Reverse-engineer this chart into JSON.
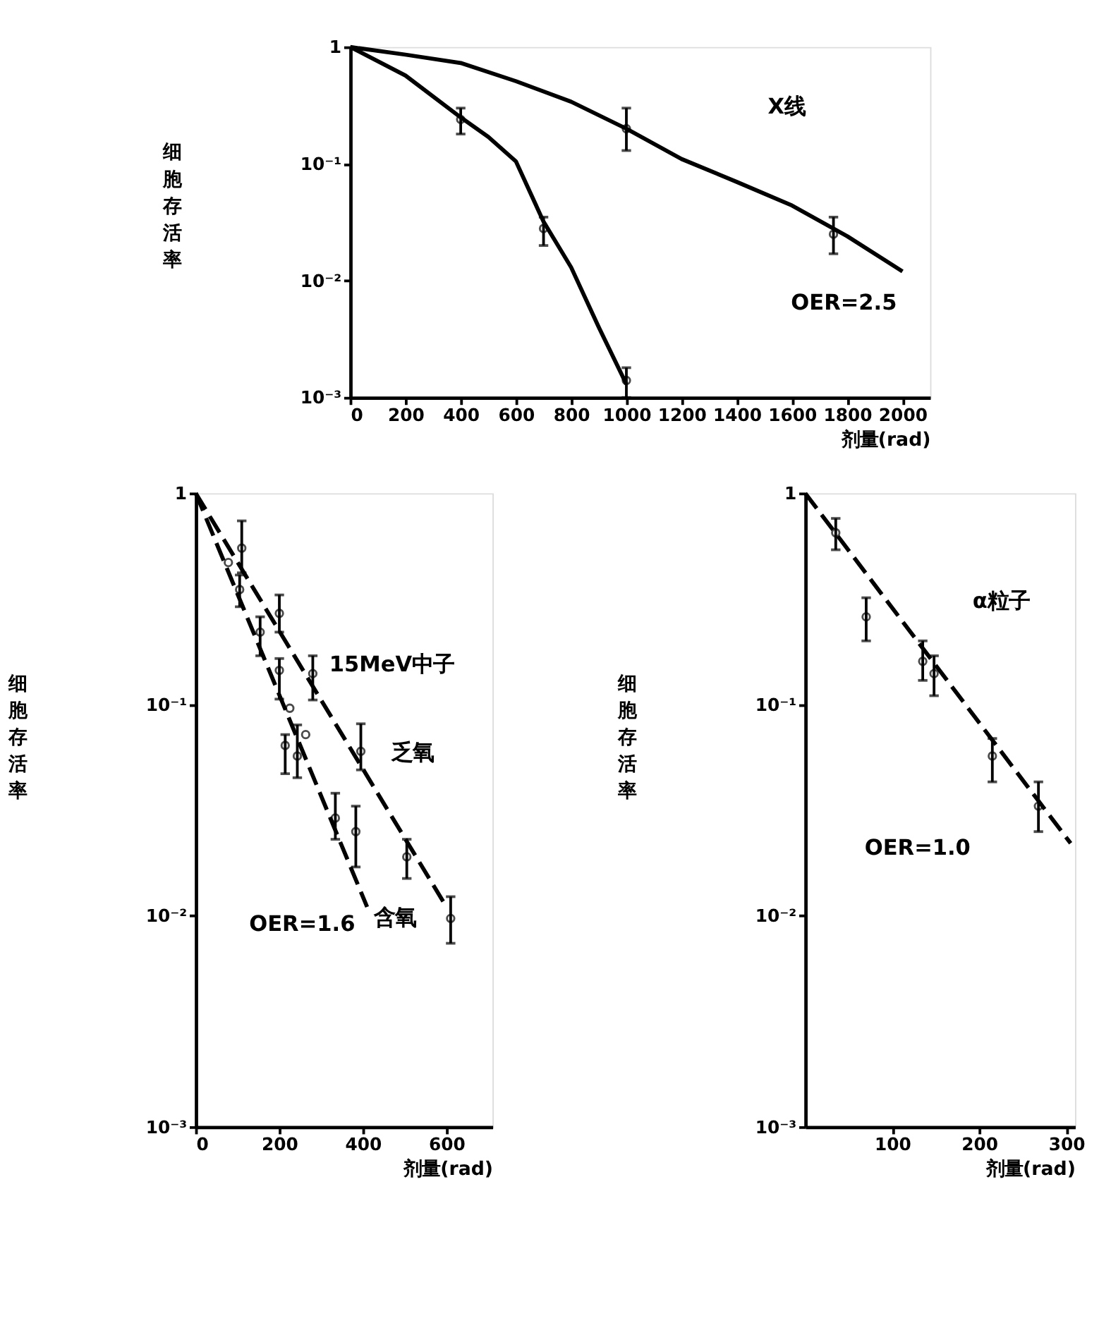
{
  "chart_data": [
    {
      "type": "line",
      "xlabel": "剂量(rad)",
      "ylabel": "细胞存活率",
      "log": "y",
      "grid": false,
      "line_style": "solid",
      "xlim": [
        0,
        2100
      ],
      "xticks": [
        0,
        200,
        400,
        600,
        800,
        1000,
        1200,
        1400,
        1600,
        1800,
        2000
      ],
      "ylim": [
        0.001,
        1
      ],
      "yticks": [
        1,
        {
          "value": 0.1,
          "label": "10⁻¹"
        },
        {
          "value": 0.01,
          "label": "10⁻²"
        },
        {
          "value": 0.001,
          "label": "10⁻³"
        }
      ],
      "annotations": [
        "X线",
        "OER=2.5"
      ],
      "series": [
        {
          "type": "line",
          "color": "#000000",
          "marker": "none",
          "x": [
            0,
            200,
            400,
            600,
            800,
            1000,
            1200,
            1400,
            1600,
            1800,
            2000
          ],
          "values": [
            1,
            0.86,
            0.73,
            0.51,
            0.34,
            0.2,
            0.11,
            0.07,
            0.044,
            0.024,
            0.012
          ]
        },
        {
          "type": "line",
          "color": "#000000",
          "marker": "none",
          "x": [
            0,
            200,
            400,
            500,
            600,
            700,
            800,
            900,
            1000
          ],
          "values": [
            1,
            0.57,
            0.25,
            0.17,
            0.105,
            0.032,
            0.013,
            0.004,
            0.0013
          ]
        },
        {
          "type": "scatter",
          "color": "#000000",
          "marker": "circle",
          "x": [
            1000,
            1750
          ],
          "values": [
            0.2,
            0.025
          ],
          "errors": [
            [
              0.13,
              0.3
            ],
            [
              0.017,
              0.035
            ]
          ]
        },
        {
          "type": "scatter",
          "color": "#000000",
          "marker": "circle",
          "x": [
            400,
            700,
            1000
          ],
          "values": [
            0.24,
            0.028,
            0.0014
          ],
          "errors": [
            [
              0.18,
              0.3
            ],
            [
              0.02,
              0.035
            ],
            [
              0.001,
              0.0018
            ]
          ]
        }
      ]
    },
    {
      "type": "line",
      "xlabel": "剂量(rad)",
      "ylabel": "细胞存活率",
      "log": "y",
      "grid": false,
      "line_style": "dashed",
      "xlim": [
        0,
        710
      ],
      "xticks": [
        0,
        200,
        400,
        600
      ],
      "ylim": [
        0.001,
        1
      ],
      "yticks": [
        1,
        {
          "value": 0.1,
          "label": "10⁻¹"
        },
        {
          "value": 0.01,
          "label": "10⁻²"
        },
        {
          "value": 0.001,
          "label": "10⁻³"
        }
      ],
      "annotations": [
        "15MeV中子",
        "OER=1.6",
        "乏氧",
        "含氧"
      ],
      "series": [
        {
          "type": "line",
          "color": "#000000",
          "marker": "none",
          "x": [
            0,
            600
          ],
          "values": [
            1,
            0.011
          ]
        },
        {
          "type": "line",
          "color": "#000000",
          "marker": "none",
          "x": [
            0,
            410
          ],
          "values": [
            1,
            0.011
          ]
        },
        {
          "type": "scatter",
          "color": "#000000",
          "marker": "circle",
          "x": [
            110,
            200,
            280,
            395,
            505,
            610
          ],
          "values": [
            0.55,
            0.27,
            0.14,
            0.06,
            0.019,
            0.0097
          ],
          "errors": [
            [
              0.42,
              0.74
            ],
            [
              0.22,
              0.33
            ],
            [
              0.105,
              0.17
            ],
            [
              0.049,
              0.081
            ],
            [
              0.015,
              0.023
            ],
            [
              0.0074,
              0.0123
            ]
          ]
        },
        {
          "type": "scatter",
          "color": "#000000",
          "marker": "circle",
          "x": [
            78,
            105,
            154,
            200,
            225,
            214,
            243,
            263,
            334,
            383
          ],
          "values": [
            0.47,
            0.35,
            0.22,
            0.145,
            0.096,
            0.064,
            0.057,
            0.072,
            0.029,
            0.025
          ],
          "errors": [
            null,
            [
              0.29,
              0.41
            ],
            [
              0.17,
              0.26
            ],
            [
              0.106,
              0.165
            ],
            null,
            [
              0.047,
              0.072
            ],
            [
              0.045,
              0.08
            ],
            null,
            [
              0.023,
              0.038
            ],
            [
              0.017,
              0.033
            ]
          ]
        }
      ]
    },
    {
      "type": "line",
      "xlabel": "剂量(rad)",
      "ylabel": "细胞存活率",
      "log": "y",
      "grid": false,
      "line_style": "dashed",
      "xlim": [
        0,
        310
      ],
      "xticks": [
        100,
        200,
        300
      ],
      "ylim": [
        0.001,
        1
      ],
      "yticks": [
        1,
        {
          "value": 0.1,
          "label": "10⁻¹"
        },
        {
          "value": 0.01,
          "label": "10⁻²"
        },
        {
          "value": 0.001,
          "label": "10⁻³"
        }
      ],
      "annotations": [
        "α粒子",
        "OER=1.0"
      ],
      "series": [
        {
          "type": "line",
          "color": "#000000",
          "marker": "none",
          "x": [
            0,
            305
          ],
          "values": [
            1,
            0.022
          ]
        },
        {
          "type": "scatter",
          "color": "#000000",
          "marker": "circle",
          "x": [
            35,
            70,
            135,
            148,
            215,
            268
          ],
          "values": [
            0.65,
            0.26,
            0.16,
            0.14,
            0.057,
            0.033
          ],
          "errors": [
            [
              0.54,
              0.76
            ],
            [
              0.2,
              0.32
            ],
            [
              0.13,
              0.2
            ],
            [
              0.11,
              0.17
            ],
            [
              0.043,
              0.069
            ],
            [
              0.025,
              0.043
            ]
          ]
        }
      ]
    }
  ]
}
